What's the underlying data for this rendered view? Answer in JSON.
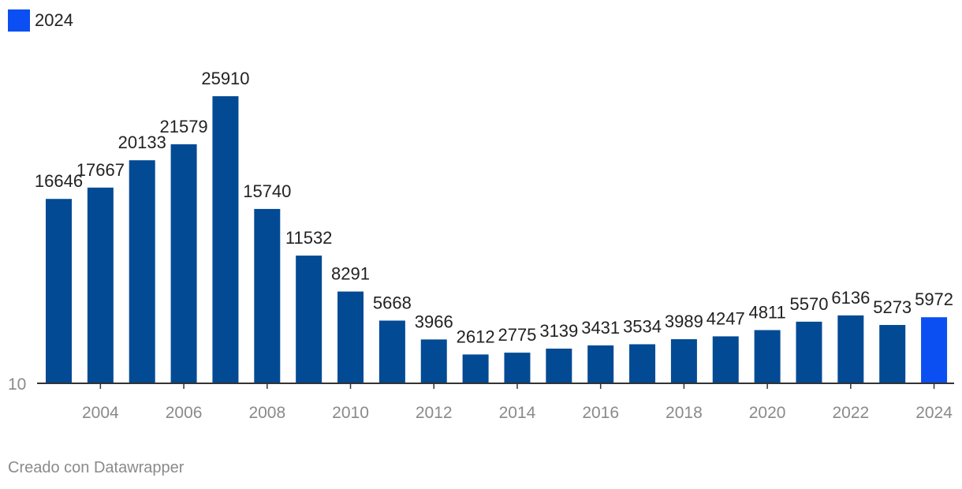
{
  "legend": {
    "label": "2024",
    "swatch_color": "#0b4ff2"
  },
  "footer": {
    "credit": "Creado con Datawrapper"
  },
  "colors": {
    "bar": "#034a94",
    "highlight": "#0b4ff2",
    "axis": "#333333",
    "tick_text": "#8a8a8a",
    "label_text": "#222222"
  },
  "chart_data": {
    "type": "bar",
    "title": "",
    "xlabel": "",
    "ylabel": "",
    "categories": [
      "2003",
      "2004",
      "2005",
      "2006",
      "2007",
      "2008",
      "2009",
      "2010",
      "2011",
      "2012",
      "2013",
      "2014",
      "2015",
      "2016",
      "2017",
      "2018",
      "2019",
      "2020",
      "2021",
      "2022",
      "2023",
      "2024"
    ],
    "values": [
      16646,
      17667,
      20133,
      21579,
      25910,
      15740,
      11532,
      8291,
      5668,
      3966,
      2612,
      2775,
      3139,
      3431,
      3534,
      3989,
      4247,
      4811,
      5570,
      6136,
      5273,
      5972
    ],
    "highlight": [
      "2024"
    ],
    "x_tick_labels": [
      "2004",
      "2006",
      "2008",
      "2010",
      "2012",
      "2014",
      "2016",
      "2018",
      "2020",
      "2022",
      "2024"
    ],
    "y_tick_label": "10",
    "ylim": [
      10,
      26000
    ],
    "grid": false,
    "legend_position": "top-left"
  }
}
